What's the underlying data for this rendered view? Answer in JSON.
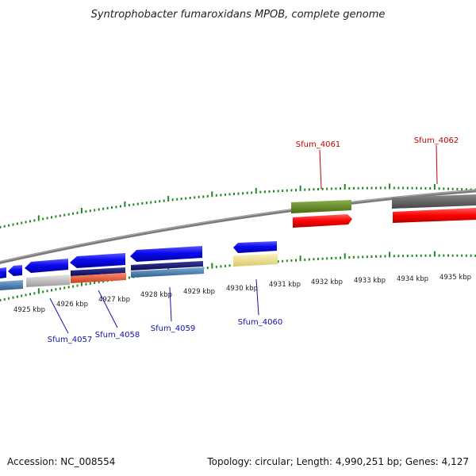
{
  "title": "Syntrophobacter fumaroxidans MPOB, complete genome",
  "footer": {
    "accession": "Accession: NC_008554",
    "summary": "Topology: circular; Length: 4,990,251 bp; Genes: 4,127"
  },
  "ticks": [
    "4925 kbp",
    "4926 kbp",
    "4927 kbp",
    "4928 kbp",
    "4929 kbp",
    "4930 kbp",
    "4931 kbp",
    "4932 kbp",
    "4933 kbp",
    "4934 kbp",
    "4935 kbp"
  ],
  "gene_labels": {
    "sfum_4057": "Sfum_4057",
    "sfum_4058": "Sfum_4058",
    "sfum_4059": "Sfum_4059",
    "sfum_4060": "Sfum_4060",
    "sfum_4061": "Sfum_4061",
    "sfum_4062": "Sfum_4062"
  },
  "colors": {
    "backbone": "#7a7a7a",
    "tick_green": "#1e8a1e",
    "cds_blue": "#0a0af0",
    "navy": "#101070",
    "steel_blue": "#4682b4",
    "silver": "#c0c0c0",
    "salmon": "#f06040",
    "khaki": "#f0e68c",
    "olive": "#6b8e23",
    "red": "#ff0000",
    "dark_gray": "#666666"
  }
}
